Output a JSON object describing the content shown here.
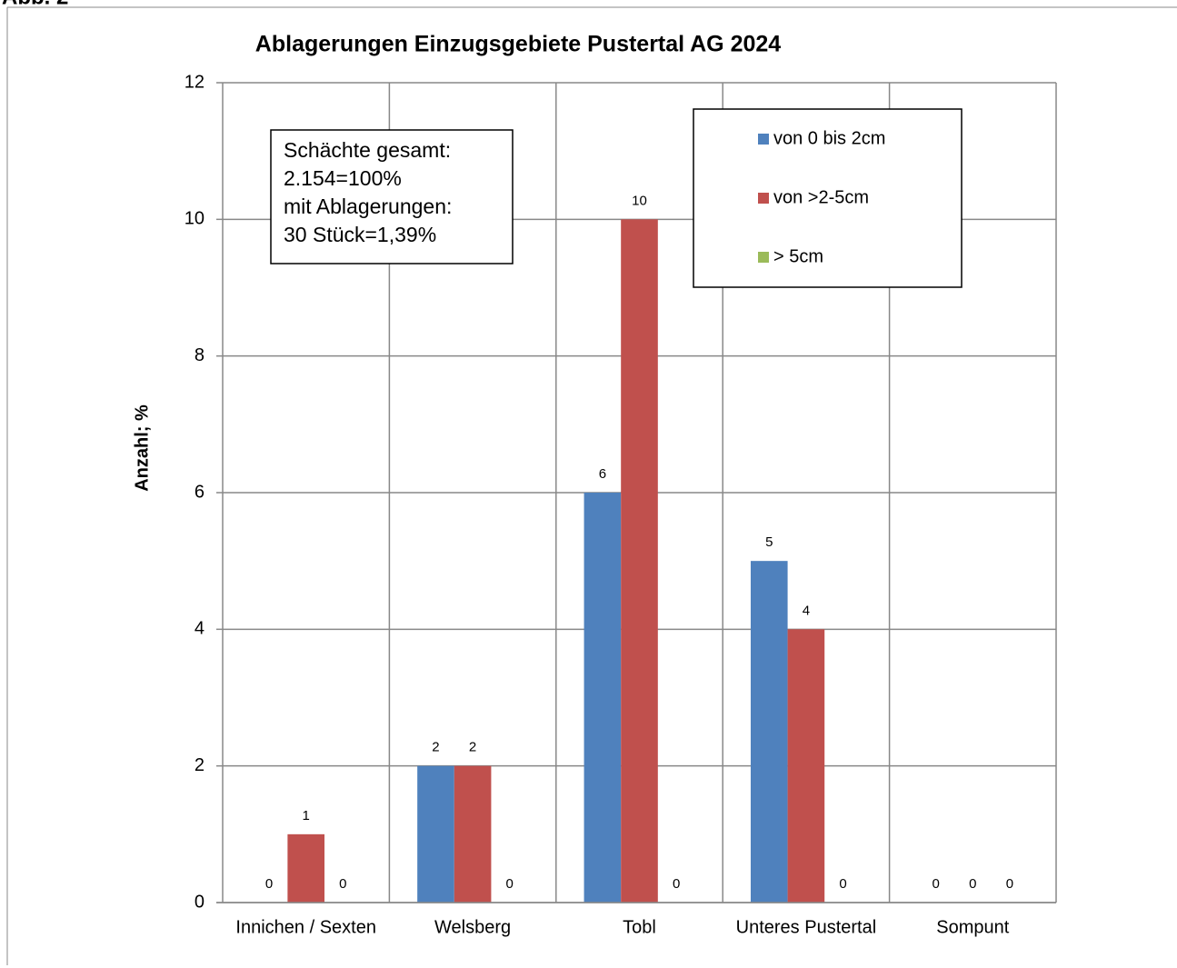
{
  "figure_label": "Abb. 2",
  "chart_data": {
    "type": "bar",
    "title": "Ablagerungen Einzugsgebiete Pustertal AG 2024",
    "ylabel": "Anzahl; %",
    "categories": [
      "Innichen / Sexten",
      "Welsberg",
      "Tobl",
      "Unteres Pustertal",
      "Sompunt"
    ],
    "series": [
      {
        "name": "von 0 bis 2cm",
        "color": "#4f81bd",
        "values": [
          0,
          2,
          6,
          5,
          0
        ]
      },
      {
        "name": "von >2-5cm",
        "color": "#c0504d",
        "values": [
          1,
          2,
          10,
          4,
          0
        ]
      },
      {
        "name": "> 5cm",
        "color": "#9bbb59",
        "values": [
          0,
          0,
          0,
          0,
          0
        ]
      }
    ],
    "ylim": [
      0,
      12
    ],
    "yticks": [
      0,
      2,
      4,
      6,
      8,
      10,
      12
    ],
    "grid": true,
    "legend": "upper right",
    "annotation": [
      "Schächte gesamt:",
      "2.154=100%",
      "mit Ablagerungen:",
      "30 Stück=1,39%"
    ]
  }
}
